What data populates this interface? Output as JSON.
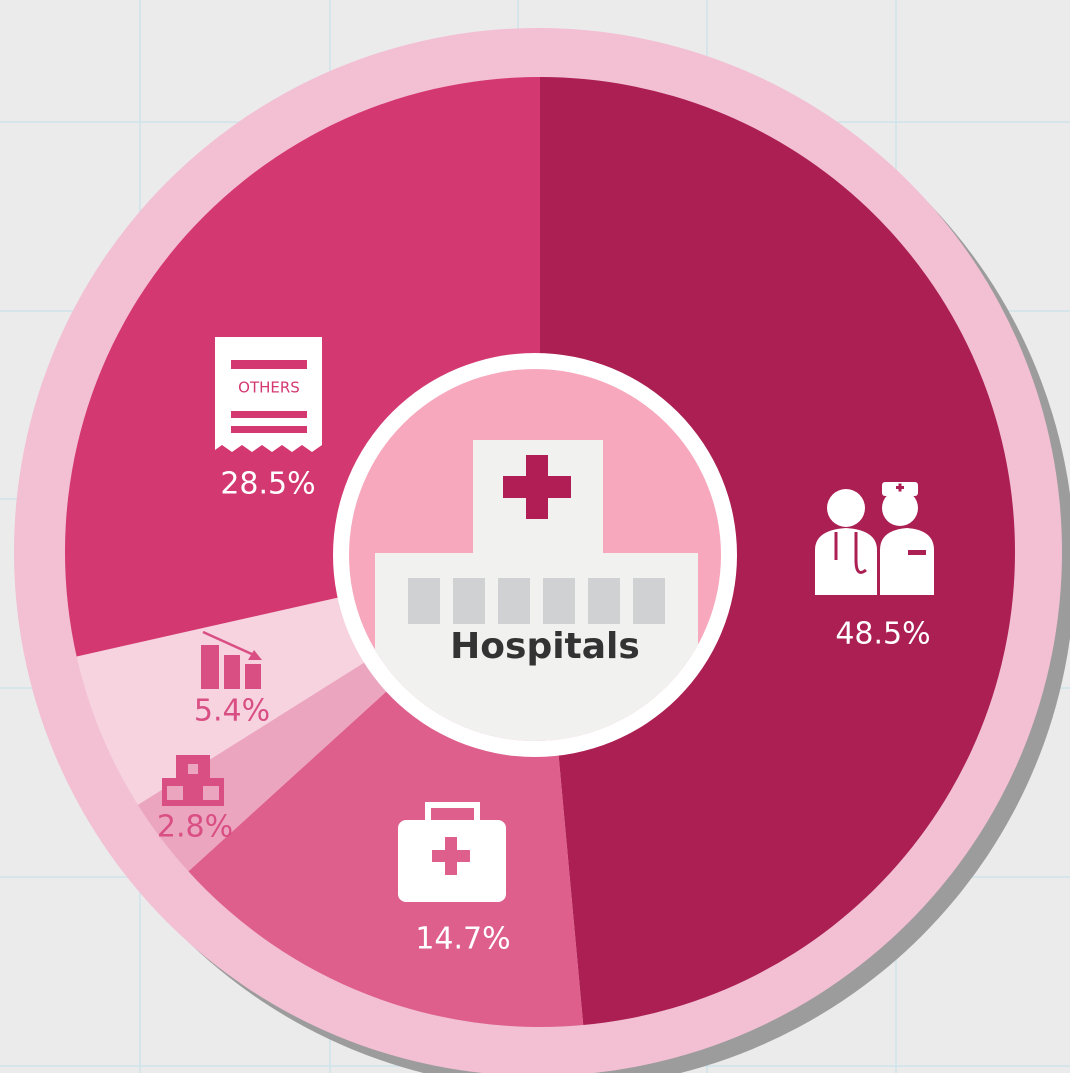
{
  "chart_data": {
    "type": "pie",
    "title": "Hospitals",
    "categories": [
      null,
      null,
      null,
      null,
      "OTHERS"
    ],
    "values": [
      48.5,
      14.7,
      2.8,
      5.4,
      28.5
    ],
    "value_labels": [
      "48.5%",
      "14.7%",
      "2.8%",
      "5.4%",
      "28.5%"
    ],
    "colors": [
      "#ab1f52",
      "#de5f8c",
      "#eba5bf",
      "#f6d3df",
      "#d43870"
    ]
  }
}
